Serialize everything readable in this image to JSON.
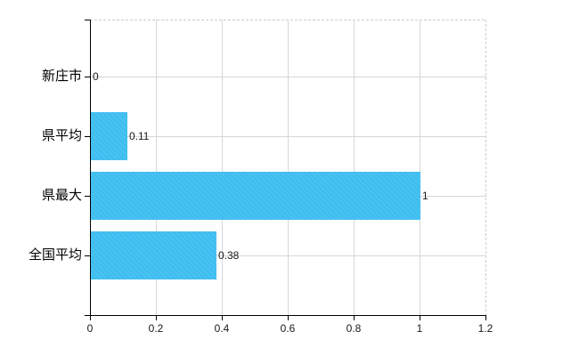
{
  "chart_data": {
    "type": "bar",
    "orientation": "horizontal",
    "categories": [
      "新庄市",
      "県平均",
      "県最大",
      "全国平均"
    ],
    "values": [
      0,
      0.11,
      1,
      0.38
    ],
    "value_labels": [
      "0",
      "0.11",
      "1",
      "0.38"
    ],
    "x_ticks": [
      0,
      0.2,
      0.4,
      0.6,
      0.8,
      1,
      1.2
    ],
    "x_tick_labels": [
      "0",
      "0.2",
      "0.4",
      "0.6",
      "0.8",
      "1",
      "1.2"
    ],
    "xlim": [
      0,
      1.2
    ],
    "grid": true,
    "legend": false,
    "colors": {
      "bar": "#3dbdf0",
      "gridline": "#d6d6d6",
      "dashed_border": "#cccccc",
      "axis": "#000000",
      "category_text": "#000000",
      "value_text": "#1a1a1a",
      "background": "#ffffff"
    }
  }
}
